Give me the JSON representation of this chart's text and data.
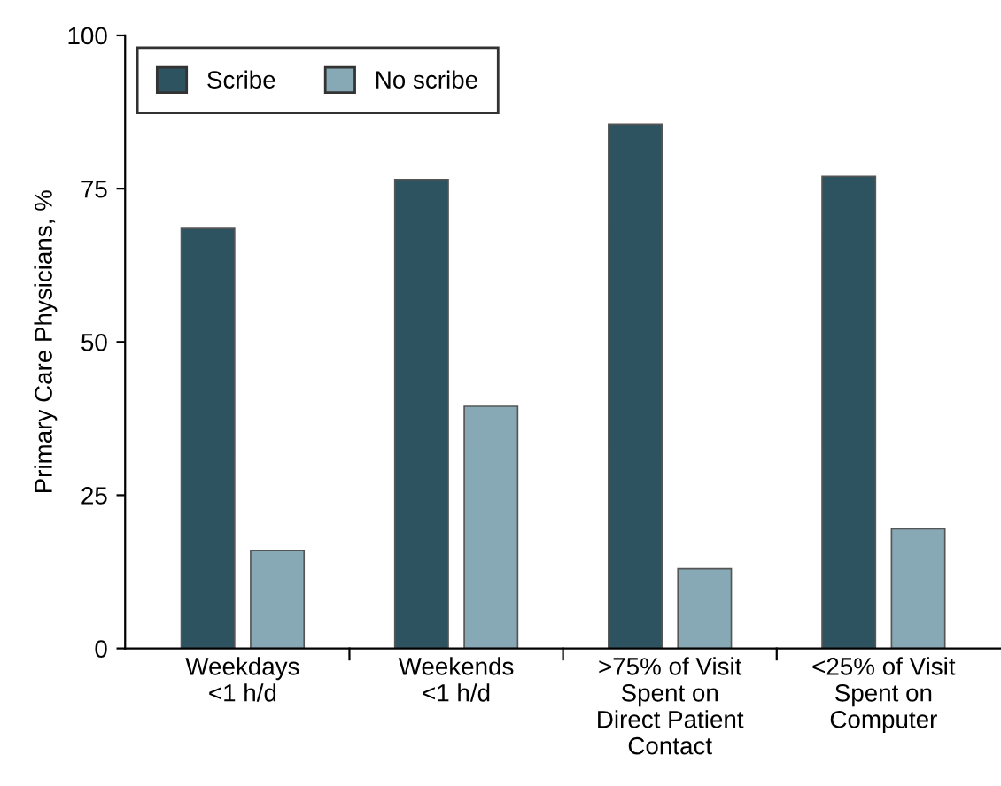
{
  "chart_data": {
    "type": "bar",
    "ylabel": "Primary Care Physicians, %",
    "categories": [
      "Weekdays\n<1 h/d",
      "Weekends\n<1 h/d",
      ">75% of Visit\nSpent on\nDirect Patient\nContact",
      "<25% of Visit\nSpent on\nComputer"
    ],
    "series": [
      {
        "name": "Scribe",
        "color": "#2d5360",
        "values": [
          68.5,
          76.5,
          85.5,
          77
        ]
      },
      {
        "name": "No scribe",
        "color": "#87a9b5",
        "values": [
          16,
          39.5,
          13,
          19.5
        ]
      }
    ],
    "ylim": [
      0,
      100
    ],
    "yticks": [
      0,
      25,
      50,
      75,
      100
    ],
    "grid": false,
    "legend": "top left"
  }
}
